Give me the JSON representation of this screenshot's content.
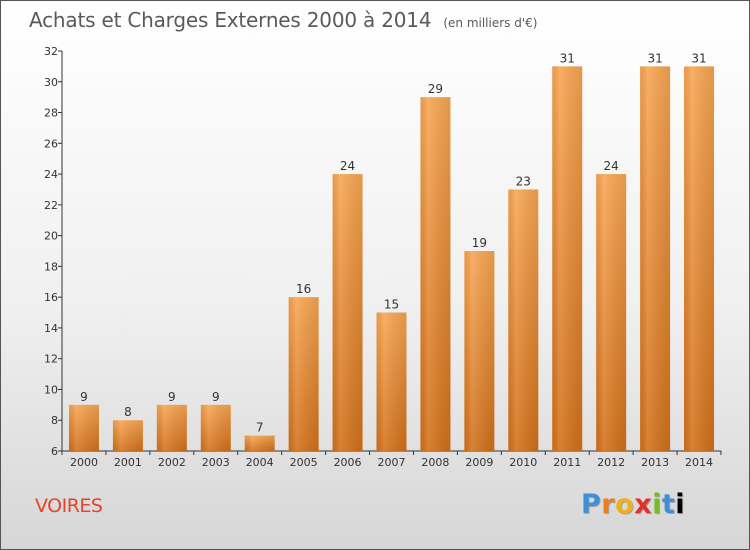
{
  "header": {
    "title": "Achats et Charges Externes 2000 à 2014",
    "unit": "(en milliers d'€)"
  },
  "footer": {
    "commune": "VOIRES",
    "logo_letters": [
      "P",
      "r",
      "o",
      "x",
      "i",
      "t",
      "i"
    ]
  },
  "colors": {
    "bar_light": "#f7a552",
    "bar_dark": "#d2701a",
    "axis": "#333333",
    "commune_text": "#e0452e"
  },
  "chart_data": {
    "type": "bar",
    "title": "Achats et Charges Externes 2000 à 2014",
    "subtitle": "(en milliers d'€)",
    "xlabel": "",
    "ylabel": "",
    "categories": [
      "2000",
      "2001",
      "2002",
      "2003",
      "2004",
      "2005",
      "2006",
      "2007",
      "2008",
      "2009",
      "2010",
      "2011",
      "2012",
      "2013",
      "2014"
    ],
    "values": [
      9,
      8,
      9,
      9,
      7,
      16,
      24,
      15,
      29,
      19,
      23,
      31,
      24,
      31,
      31
    ],
    "ylim": [
      6,
      32
    ],
    "yticks": [
      6,
      8,
      10,
      12,
      14,
      16,
      18,
      20,
      22,
      24,
      26,
      28,
      30,
      32
    ],
    "grid": false,
    "legend": "none"
  }
}
